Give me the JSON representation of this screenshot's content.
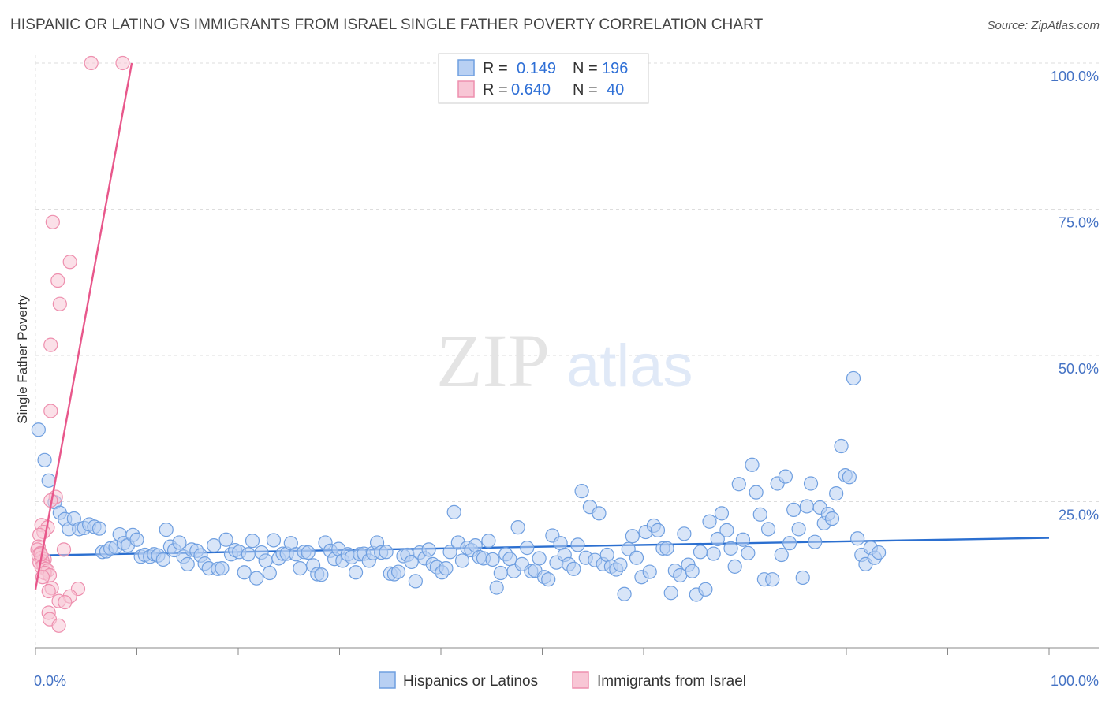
{
  "header": {
    "title": "HISPANIC OR LATINO VS IMMIGRANTS FROM ISRAEL SINGLE FATHER POVERTY CORRELATION CHART",
    "source": "Source: ZipAtlas.com"
  },
  "watermark": {
    "zip": "ZIP",
    "atlas": "atlas"
  },
  "colors": {
    "blue_fill": "#b8d0f3",
    "blue_stroke": "#6f9fe0",
    "blue_line": "#2b6fd0",
    "pink_fill": "#f8c6d5",
    "pink_stroke": "#ee8fae",
    "pink_line": "#e8578b",
    "tick_label": "#4472c4",
    "grid": "#dddddd"
  },
  "chart_data": {
    "type": "scatter",
    "title": "HISPANIC OR LATINO VS IMMIGRANTS FROM ISRAEL SINGLE FATHER POVERTY CORRELATION CHART",
    "xlabel": "",
    "ylabel": "Single Father Poverty",
    "xlim": [
      0,
      100
    ],
    "ylim": [
      0,
      100
    ],
    "x_tick_labels": [
      "0.0%",
      "100.0%"
    ],
    "y_ticks": [
      25,
      50,
      75,
      100
    ],
    "y_tick_labels": [
      "25.0%",
      "50.0%",
      "75.0%",
      "100.0%"
    ],
    "grid": true,
    "legend_position": "top-center",
    "stats_legend": [
      {
        "r_label": "R =",
        "r_value": "0.149",
        "n_label": "N =",
        "n_value": "196"
      },
      {
        "r_label": "R =",
        "r_value": "0.640",
        "n_label": "N =",
        "n_value": "40"
      }
    ],
    "series": [
      {
        "name": "Hispanics or Latinos",
        "color": "#b8d0f3",
        "trend": [
          [
            0,
            15.8
          ],
          [
            100,
            18.8
          ]
        ],
        "points": [
          [
            0.3,
            37.3
          ],
          [
            0.9,
            32.1
          ],
          [
            1.3,
            28.6
          ],
          [
            1.9,
            24.9
          ],
          [
            2.4,
            23.1
          ],
          [
            2.9,
            22.0
          ],
          [
            3.3,
            20.3
          ],
          [
            3.8,
            22.1
          ],
          [
            4.3,
            20.3
          ],
          [
            4.8,
            20.5
          ],
          [
            5.3,
            21.1
          ],
          [
            5.8,
            20.7
          ],
          [
            6.3,
            20.4
          ],
          [
            6.6,
            16.4
          ],
          [
            7.0,
            16.5
          ],
          [
            7.4,
            17.0
          ],
          [
            7.9,
            17.2
          ],
          [
            8.3,
            19.4
          ],
          [
            8.7,
            17.9
          ],
          [
            9.1,
            17.5
          ],
          [
            9.6,
            19.3
          ],
          [
            10.0,
            18.5
          ],
          [
            10.4,
            15.6
          ],
          [
            10.8,
            15.9
          ],
          [
            11.3,
            15.6
          ],
          [
            11.7,
            16.0
          ],
          [
            12.1,
            15.8
          ],
          [
            12.6,
            15.1
          ],
          [
            12.9,
            20.2
          ],
          [
            13.3,
            17.3
          ],
          [
            13.7,
            16.7
          ],
          [
            14.2,
            18.0
          ],
          [
            14.6,
            15.6
          ],
          [
            15.0,
            14.3
          ],
          [
            15.4,
            16.8
          ],
          [
            15.9,
            16.6
          ],
          [
            16.3,
            15.8
          ],
          [
            16.7,
            14.4
          ],
          [
            17.1,
            13.6
          ],
          [
            17.6,
            17.5
          ],
          [
            18.0,
            13.5
          ],
          [
            18.4,
            13.6
          ],
          [
            18.8,
            18.5
          ],
          [
            19.3,
            16.0
          ],
          [
            19.7,
            16.7
          ],
          [
            20.1,
            16.4
          ],
          [
            20.6,
            12.9
          ],
          [
            21.0,
            16.0
          ],
          [
            21.4,
            18.3
          ],
          [
            21.8,
            11.9
          ],
          [
            22.3,
            16.3
          ],
          [
            22.7,
            14.9
          ],
          [
            23.1,
            12.8
          ],
          [
            23.5,
            18.4
          ],
          [
            24.0,
            15.3
          ],
          [
            24.4,
            16.1
          ],
          [
            24.8,
            16.1
          ],
          [
            25.2,
            17.9
          ],
          [
            25.7,
            16.0
          ],
          [
            26.1,
            13.6
          ],
          [
            26.5,
            16.4
          ],
          [
            26.9,
            16.3
          ],
          [
            27.4,
            14.1
          ],
          [
            27.8,
            12.6
          ],
          [
            28.2,
            12.5
          ],
          [
            28.6,
            18.0
          ],
          [
            29.1,
            16.6
          ],
          [
            29.5,
            15.2
          ],
          [
            29.9,
            16.9
          ],
          [
            30.3,
            14.9
          ],
          [
            30.8,
            16.0
          ],
          [
            31.2,
            15.5
          ],
          [
            31.6,
            12.9
          ],
          [
            32.0,
            16.0
          ],
          [
            32.4,
            16.1
          ],
          [
            32.9,
            14.9
          ],
          [
            33.3,
            16.2
          ],
          [
            33.7,
            18.0
          ],
          [
            34.1,
            16.3
          ],
          [
            34.6,
            16.4
          ],
          [
            35.0,
            12.7
          ],
          [
            35.4,
            12.6
          ],
          [
            35.8,
            13.0
          ],
          [
            36.3,
            15.7
          ],
          [
            36.7,
            15.9
          ],
          [
            37.1,
            14.7
          ],
          [
            37.5,
            11.4
          ],
          [
            37.9,
            16.3
          ],
          [
            38.4,
            15.3
          ],
          [
            38.8,
            16.8
          ],
          [
            39.2,
            14.3
          ],
          [
            39.6,
            13.8
          ],
          [
            40.1,
            12.9
          ],
          [
            40.5,
            13.6
          ],
          [
            40.9,
            16.4
          ],
          [
            41.3,
            23.2
          ],
          [
            41.7,
            18.0
          ],
          [
            42.1,
            14.9
          ],
          [
            42.6,
            17.1
          ],
          [
            43.0,
            16.7
          ],
          [
            43.4,
            17.5
          ],
          [
            43.8,
            15.5
          ],
          [
            44.2,
            15.3
          ],
          [
            44.7,
            18.3
          ],
          [
            45.1,
            15.1
          ],
          [
            45.5,
            10.3
          ],
          [
            45.9,
            12.8
          ],
          [
            46.4,
            16.0
          ],
          [
            46.8,
            15.2
          ],
          [
            47.2,
            13.1
          ],
          [
            47.6,
            20.6
          ],
          [
            48.0,
            14.3
          ],
          [
            48.5,
            17.1
          ],
          [
            48.9,
            13.1
          ],
          [
            49.3,
            13.2
          ],
          [
            49.7,
            15.3
          ],
          [
            50.2,
            12.1
          ],
          [
            50.6,
            11.7
          ],
          [
            51.0,
            19.2
          ],
          [
            51.4,
            14.6
          ],
          [
            51.8,
            17.9
          ],
          [
            52.2,
            15.9
          ],
          [
            52.6,
            14.3
          ],
          [
            53.1,
            13.5
          ],
          [
            53.5,
            17.6
          ],
          [
            53.9,
            26.8
          ],
          [
            54.3,
            15.4
          ],
          [
            54.7,
            24.1
          ],
          [
            55.2,
            15.0
          ],
          [
            55.6,
            23.0
          ],
          [
            56.0,
            14.3
          ],
          [
            56.4,
            15.9
          ],
          [
            56.8,
            13.9
          ],
          [
            57.3,
            13.4
          ],
          [
            57.7,
            14.2
          ],
          [
            58.1,
            9.2
          ],
          [
            58.5,
            16.9
          ],
          [
            58.9,
            19.1
          ],
          [
            59.3,
            15.4
          ],
          [
            59.8,
            12.1
          ],
          [
            60.2,
            19.8
          ],
          [
            60.6,
            13.0
          ],
          [
            61.0,
            20.9
          ],
          [
            61.4,
            20.1
          ],
          [
            61.9,
            17.0
          ],
          [
            62.3,
            17.0
          ],
          [
            62.7,
            9.4
          ],
          [
            63.1,
            13.2
          ],
          [
            63.6,
            12.4
          ],
          [
            64.0,
            19.5
          ],
          [
            64.4,
            14.2
          ],
          [
            64.8,
            13.1
          ],
          [
            65.2,
            9.1
          ],
          [
            65.6,
            16.4
          ],
          [
            66.1,
            10.0
          ],
          [
            66.5,
            21.6
          ],
          [
            66.9,
            16.1
          ],
          [
            67.3,
            18.6
          ],
          [
            67.7,
            23.0
          ],
          [
            68.2,
            20.1
          ],
          [
            68.6,
            17.0
          ],
          [
            69.0,
            13.9
          ],
          [
            69.4,
            28.0
          ],
          [
            69.8,
            18.5
          ],
          [
            70.3,
            16.2
          ],
          [
            70.7,
            31.3
          ],
          [
            71.1,
            26.6
          ],
          [
            71.5,
            22.8
          ],
          [
            71.9,
            11.7
          ],
          [
            72.3,
            20.3
          ],
          [
            72.7,
            11.7
          ],
          [
            73.2,
            28.1
          ],
          [
            73.6,
            15.9
          ],
          [
            74.0,
            29.3
          ],
          [
            74.4,
            17.9
          ],
          [
            74.8,
            23.6
          ],
          [
            75.3,
            20.3
          ],
          [
            75.7,
            12.0
          ],
          [
            76.1,
            24.2
          ],
          [
            76.5,
            28.1
          ],
          [
            76.9,
            18.1
          ],
          [
            77.4,
            24.0
          ],
          [
            77.8,
            21.3
          ],
          [
            78.2,
            22.9
          ],
          [
            78.6,
            22.1
          ],
          [
            79.0,
            26.4
          ],
          [
            79.5,
            34.5
          ],
          [
            79.9,
            29.5
          ],
          [
            80.3,
            29.2
          ],
          [
            80.7,
            46.1
          ],
          [
            81.1,
            18.7
          ],
          [
            81.5,
            15.9
          ],
          [
            81.9,
            14.3
          ],
          [
            82.4,
            17.1
          ],
          [
            82.8,
            15.4
          ],
          [
            83.2,
            16.3
          ]
        ]
      },
      {
        "name": "Immigrants from Israel",
        "color": "#f8c6d5",
        "trend": [
          [
            0,
            10.0
          ],
          [
            9.5,
            100.0
          ]
        ],
        "points": [
          [
            5.5,
            100.0
          ],
          [
            8.6,
            100.0
          ],
          [
            1.7,
            72.8
          ],
          [
            3.4,
            66.0
          ],
          [
            2.2,
            62.8
          ],
          [
            2.4,
            58.8
          ],
          [
            1.5,
            51.8
          ],
          [
            1.5,
            40.5
          ],
          [
            2.0,
            25.8
          ],
          [
            1.5,
            25.2
          ],
          [
            0.6,
            21.0
          ],
          [
            1.2,
            20.6
          ],
          [
            0.8,
            19.8
          ],
          [
            0.4,
            19.3
          ],
          [
            0.3,
            17.3
          ],
          [
            0.2,
            16.8
          ],
          [
            0.5,
            16.2
          ],
          [
            0.3,
            15.8
          ],
          [
            0.6,
            15.4
          ],
          [
            0.9,
            15.1
          ],
          [
            0.7,
            14.8
          ],
          [
            0.4,
            14.6
          ],
          [
            0.8,
            14.1
          ],
          [
            0.6,
            13.8
          ],
          [
            1.0,
            13.5
          ],
          [
            1.2,
            13.2
          ],
          [
            0.9,
            12.8
          ],
          [
            1.4,
            12.4
          ],
          [
            0.7,
            12.1
          ],
          [
            2.8,
            16.8
          ],
          [
            1.6,
            10.2
          ],
          [
            1.3,
            9.7
          ],
          [
            4.2,
            10.1
          ],
          [
            3.4,
            8.8
          ],
          [
            2.3,
            8.0
          ],
          [
            2.9,
            7.8
          ],
          [
            1.3,
            6.0
          ],
          [
            1.4,
            4.9
          ],
          [
            2.3,
            3.8
          ],
          [
            0.5,
            16.0
          ]
        ]
      }
    ]
  }
}
